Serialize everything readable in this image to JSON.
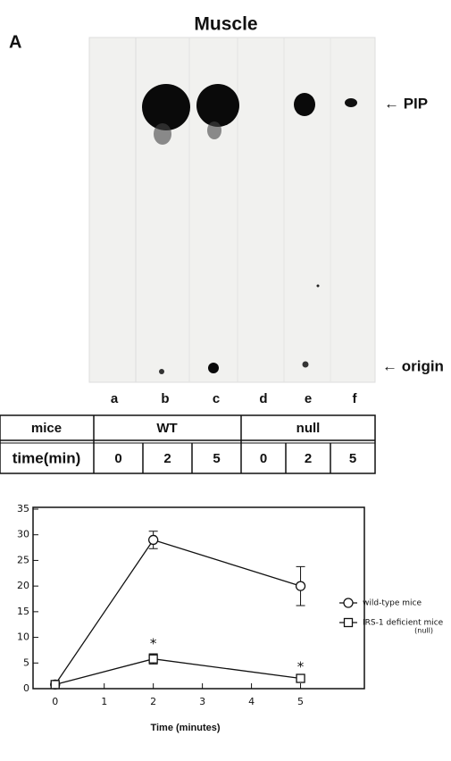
{
  "panel": "A",
  "title": "Muscle",
  "blot": {
    "lanes": [
      "a",
      "b",
      "c",
      "d",
      "e",
      "f"
    ],
    "pip_label": "← PIP",
    "origin_label": "← origin"
  },
  "table": {
    "rows": [
      [
        "mice",
        "WT",
        "null"
      ],
      [
        "time(min)",
        "0",
        "2",
        "5",
        "0",
        "2",
        "5"
      ]
    ]
  },
  "chart_data": {
    "type": "line",
    "x": [
      0,
      2,
      5
    ],
    "xlim": [
      -0.45,
      6.3
    ],
    "xticks": [
      0,
      1,
      2,
      3,
      4,
      5
    ],
    "ylim": [
      0,
      35
    ],
    "yticks": [
      0,
      5,
      10,
      15,
      20,
      25,
      30,
      35
    ],
    "x_label": "Time (minutes)",
    "series": [
      {
        "name": "wild-type mice",
        "marker": "circle",
        "color": "#111111",
        "values": [
          0.8,
          29,
          20
        ],
        "errors": [
          0.3,
          1.7,
          3.8
        ]
      },
      {
        "name": "IRS-1 deficient mice",
        "name_note": "(null)",
        "marker": "square",
        "color": "#111111",
        "values": [
          0.8,
          5.8,
          2
        ],
        "errors": [
          0.3,
          1,
          0.3
        ],
        "markers": [
          null,
          "*",
          "*"
        ]
      }
    ]
  }
}
